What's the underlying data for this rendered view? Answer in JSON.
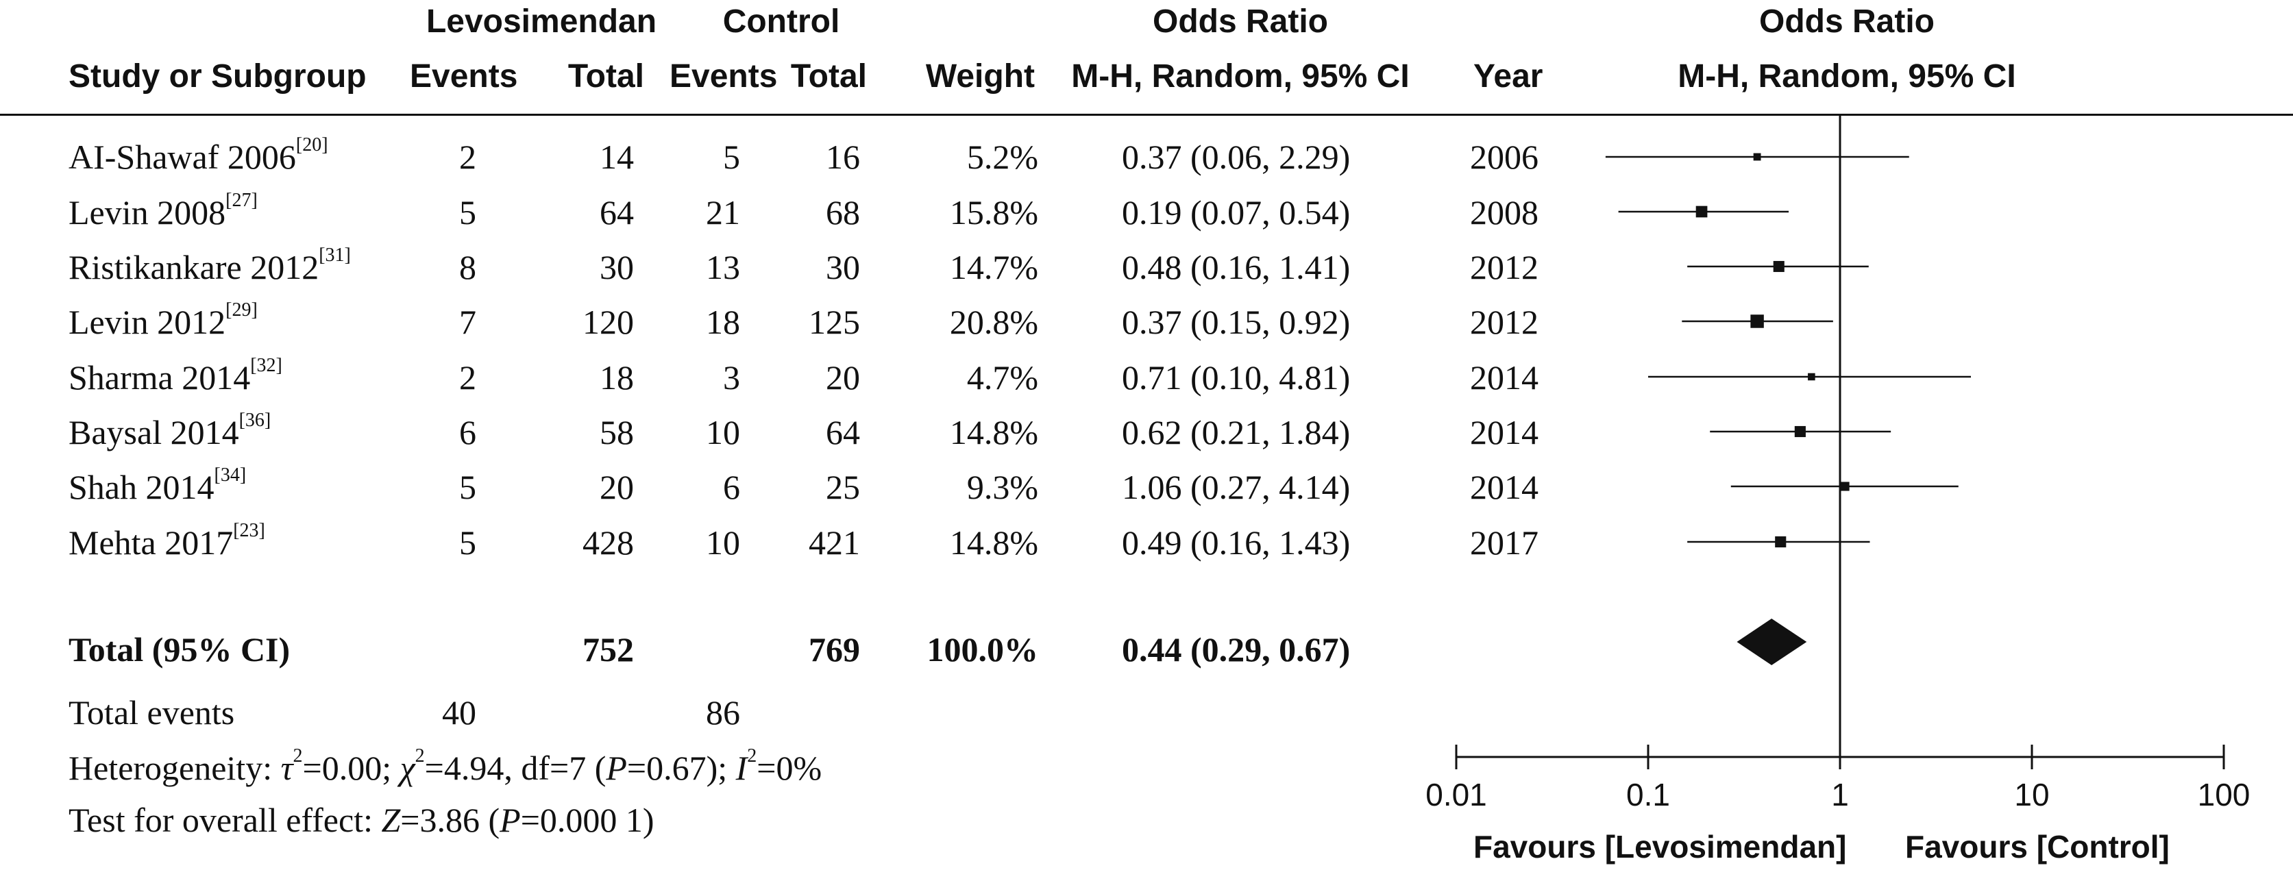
{
  "headers": {
    "levo_group": "Levosimendan",
    "control_group": "Control",
    "or_group": "Odds Ratio",
    "study": "Study or Subgroup",
    "levo_events": "Events",
    "levo_total": "Total",
    "ctrl_events": "Events",
    "ctrl_total": "Total",
    "weight": "Weight",
    "or_method": "M-H, Random, 95% CI",
    "year": "Year",
    "plot_group": "Odds Ratio",
    "plot_method": "M-H, Random, 95% CI"
  },
  "studies": [
    {
      "name": "AI-Shawaf 2006",
      "ref": "[20]",
      "le": "2",
      "lt": "14",
      "ce": "5",
      "ct": "16",
      "weight": "5.2%",
      "ci_text": "0.37 (0.06, 2.29)",
      "year": "2006"
    },
    {
      "name": "Levin 2008",
      "ref": "[27]",
      "le": "5",
      "lt": "64",
      "ce": "21",
      "ct": "68",
      "weight": "15.8%",
      "ci_text": "0.19 (0.07, 0.54)",
      "year": "2008"
    },
    {
      "name": "Ristikankare 2012",
      "ref": "[31]",
      "le": "8",
      "lt": "30",
      "ce": "13",
      "ct": "30",
      "weight": "14.7%",
      "ci_text": "0.48 (0.16, 1.41)",
      "year": "2012"
    },
    {
      "name": "Levin 2012",
      "ref": "[29]",
      "le": "7",
      "lt": "120",
      "ce": "18",
      "ct": "125",
      "weight": "20.8%",
      "ci_text": "0.37 (0.15, 0.92)",
      "year": "2012"
    },
    {
      "name": "Sharma 2014",
      "ref": "[32]",
      "le": "2",
      "lt": "18",
      "ce": "3",
      "ct": "20",
      "weight": "4.7%",
      "ci_text": "0.71 (0.10, 4.81)",
      "year": "2014"
    },
    {
      "name": "Baysal 2014",
      "ref": "[36]",
      "le": "6",
      "lt": "58",
      "ce": "10",
      "ct": "64",
      "weight": "14.8%",
      "ci_text": "0.62 (0.21, 1.84)",
      "year": "2014"
    },
    {
      "name": "Shah 2014",
      "ref": "[34]",
      "le": "5",
      "lt": "20",
      "ce": "6",
      "ct": "25",
      "weight": "9.3%",
      "ci_text": "1.06 (0.27, 4.14)",
      "year": "2014"
    },
    {
      "name": "Mehta 2017",
      "ref": "[23]",
      "le": "5",
      "lt": "428",
      "ce": "10",
      "ct": "421",
      "weight": "14.8%",
      "ci_text": "0.49 (0.16, 1.43)",
      "year": "2017"
    }
  ],
  "total": {
    "label": "Total (95% CI)",
    "levo_total": "752",
    "ctrl_total": "769",
    "weight": "100.0%",
    "ci_text": "0.44 (0.29, 0.67)"
  },
  "total_events": {
    "label": "Total events",
    "levo": "40",
    "ctrl": "86"
  },
  "heterogeneity": {
    "label": "Heterogeneity: ",
    "tau2": "0.00",
    "chi2": "4.94",
    "df": "7",
    "p": "0.67",
    "i2": "0%"
  },
  "overall_effect": {
    "label": "Test for overall effect: ",
    "z": "3.86",
    "p": "0.000 1"
  },
  "axis": {
    "ticks": [
      "0.01",
      "0.1",
      "1",
      "10",
      "100"
    ],
    "favours_left": "Favours [Levosimendan]",
    "favours_right": "Favours [Control]"
  },
  "chart_data": {
    "type": "forest",
    "scale": "log",
    "xlim": [
      0.01,
      100
    ],
    "null_line": 1,
    "series": [
      {
        "name": "AI-Shawaf 2006",
        "or": 0.37,
        "lo": 0.06,
        "hi": 2.29,
        "weight": 5.2
      },
      {
        "name": "Levin 2008",
        "or": 0.19,
        "lo": 0.07,
        "hi": 0.54,
        "weight": 15.8
      },
      {
        "name": "Ristikankare 2012",
        "or": 0.48,
        "lo": 0.16,
        "hi": 1.41,
        "weight": 14.7
      },
      {
        "name": "Levin 2012",
        "or": 0.37,
        "lo": 0.15,
        "hi": 0.92,
        "weight": 20.8
      },
      {
        "name": "Sharma 2014",
        "or": 0.71,
        "lo": 0.1,
        "hi": 4.81,
        "weight": 4.7
      },
      {
        "name": "Baysal 2014",
        "or": 0.62,
        "lo": 0.21,
        "hi": 1.84,
        "weight": 14.8
      },
      {
        "name": "Shah 2014",
        "or": 1.06,
        "lo": 0.27,
        "hi": 4.14,
        "weight": 9.3
      },
      {
        "name": "Mehta 2017",
        "or": 0.49,
        "lo": 0.16,
        "hi": 1.43,
        "weight": 14.8
      }
    ],
    "pooled": {
      "or": 0.44,
      "lo": 0.29,
      "hi": 0.67
    }
  }
}
